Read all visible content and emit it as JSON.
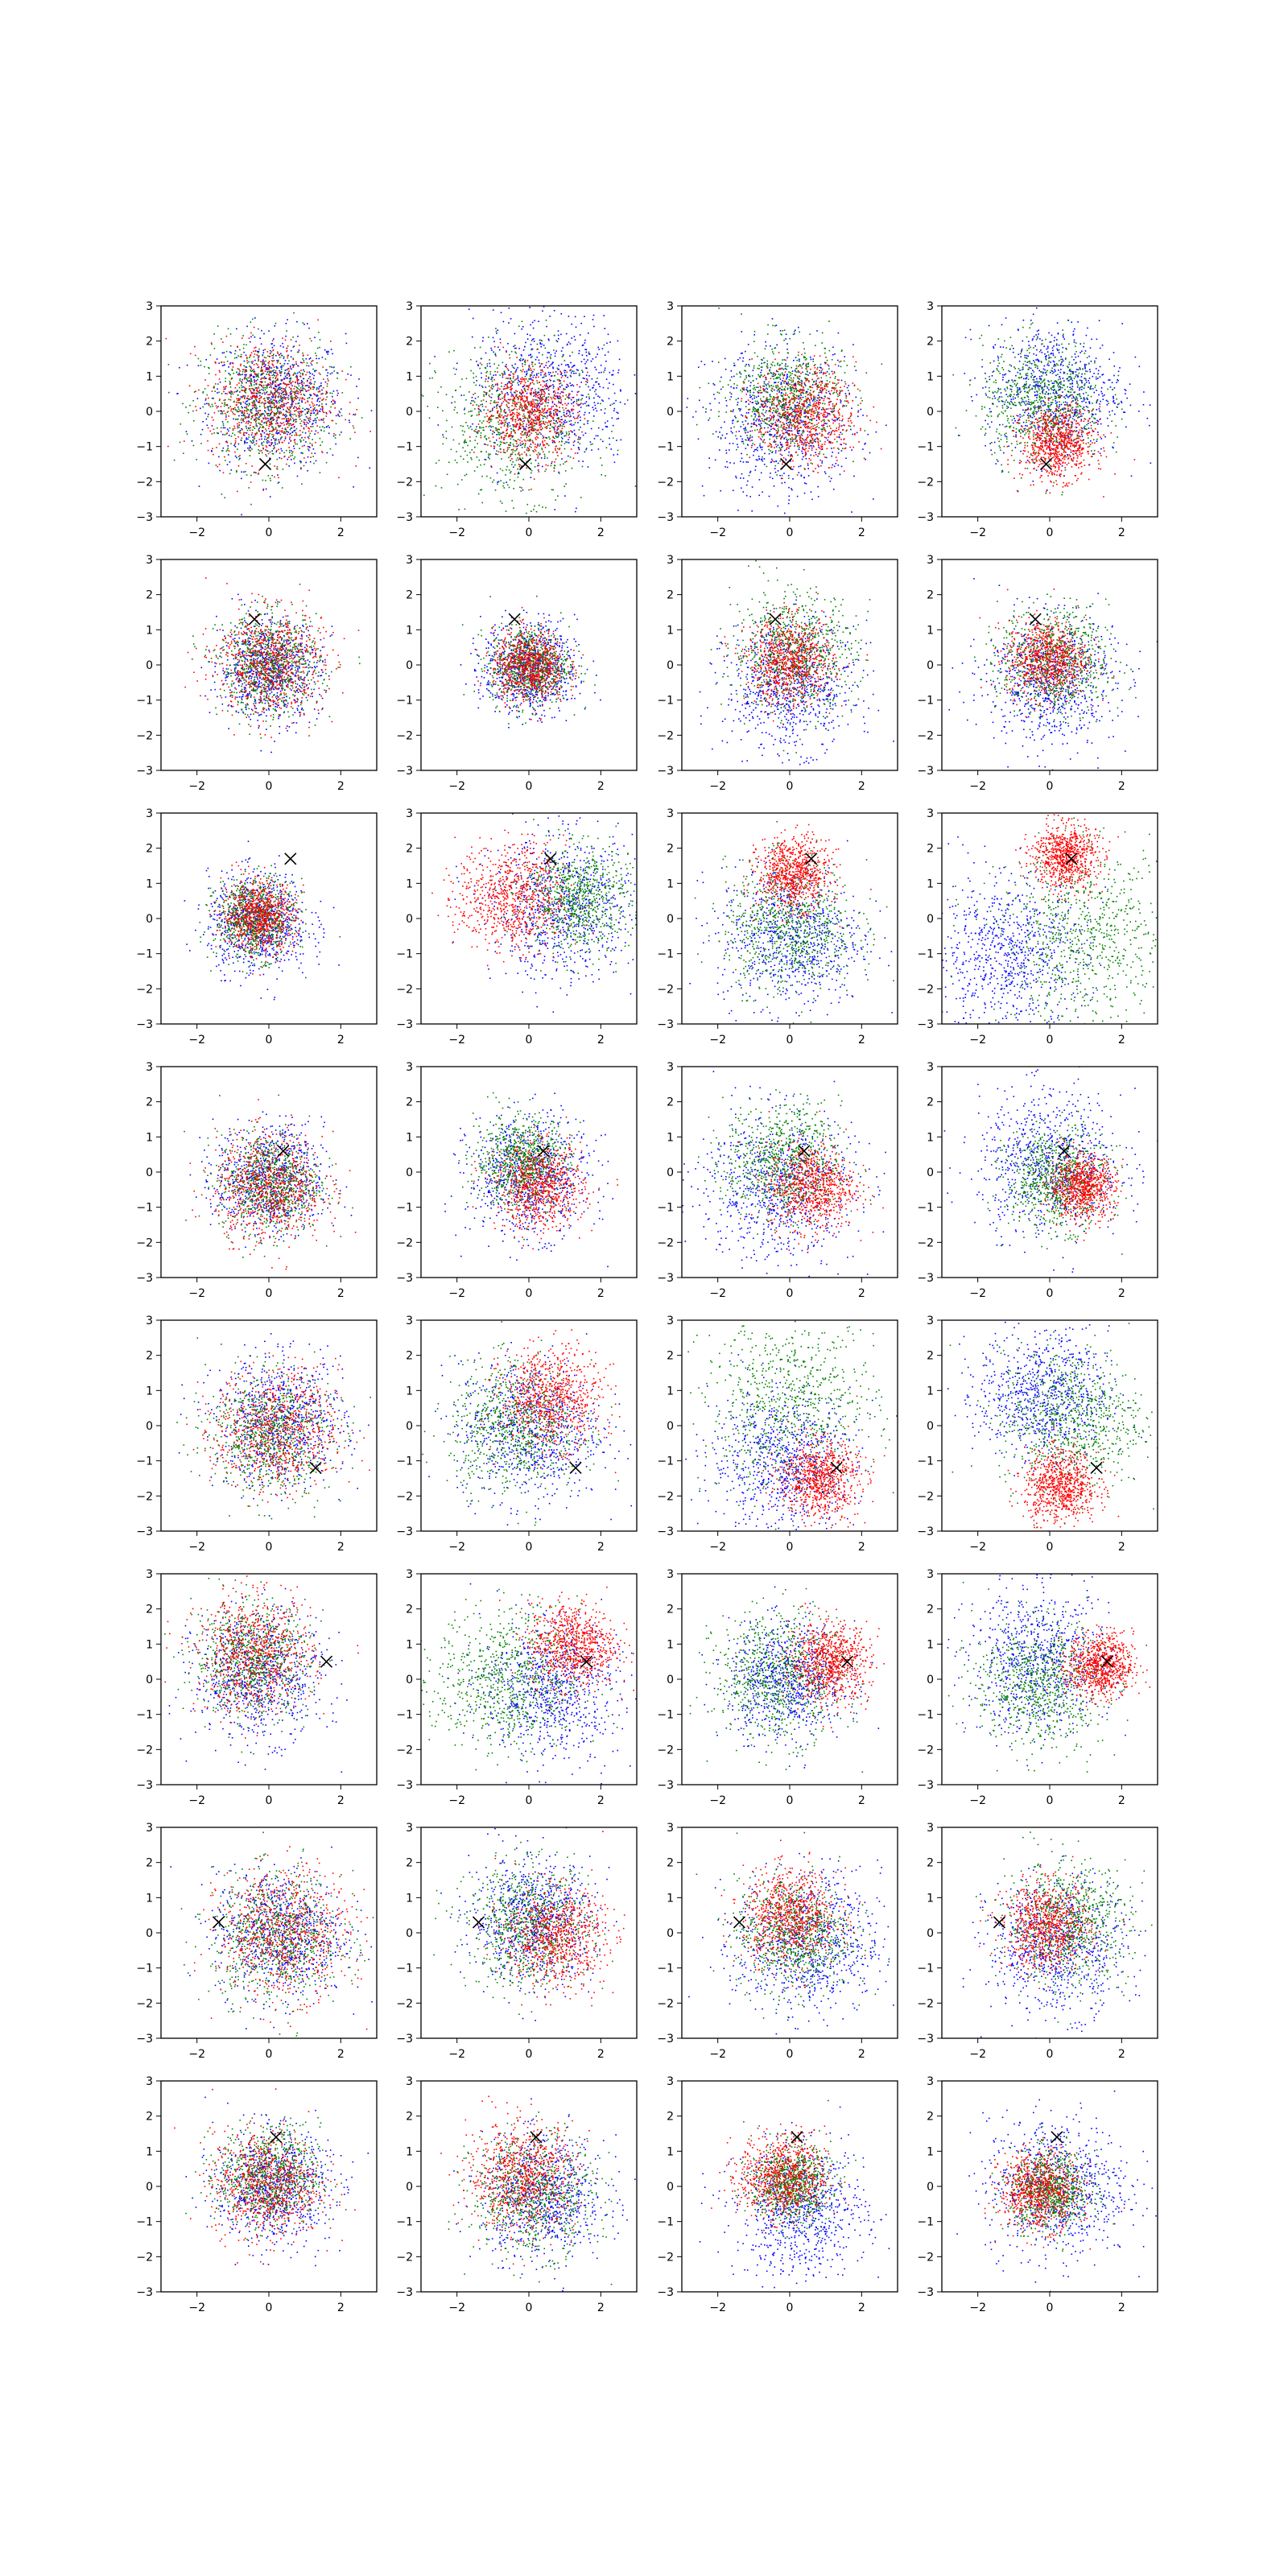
{
  "chart_data": {
    "type": "scatter",
    "layout": {
      "rows": 8,
      "cols": 4
    },
    "xlim": [
      -3,
      3
    ],
    "ylim": [
      -3,
      3
    ],
    "xticks": [
      -2,
      0,
      2
    ],
    "yticks": [
      -3,
      -2,
      -1,
      0,
      1,
      2,
      3
    ],
    "grid": false,
    "legend": "none",
    "colors": {
      "blue": "#0000ff",
      "green": "#008000",
      "red": "#ff0000",
      "marker": "#000000"
    },
    "marker_symbol": "x",
    "rows": [
      {
        "marker": [
          -0.1,
          -1.5
        ],
        "panels": [
          {
            "blue": {
              "center": [
                0.2,
                0.3
              ],
              "spread": 0.95
            },
            "green": {
              "center": [
                -0.1,
                0.2
              ],
              "spread": 0.9
            },
            "red": {
              "center": [
                0.0,
                0.3
              ],
              "spread": 0.85
            }
          },
          {
            "blue": {
              "center": [
                0.6,
                0.6
              ],
              "spread": 1.1
            },
            "green": {
              "center": [
                -0.4,
                -0.3
              ],
              "spread": 1.05
            },
            "red": {
              "center": [
                0.0,
                0.0
              ],
              "spread": 0.65
            }
          },
          {
            "blue": {
              "center": [
                -0.2,
                -0.3
              ],
              "spread": 1.05
            },
            "green": {
              "center": [
                -0.1,
                0.4
              ],
              "spread": 0.8
            },
            "red": {
              "center": [
                0.4,
                -0.1
              ],
              "spread": 0.7
            }
          },
          {
            "blue": {
              "center": [
                0.1,
                0.6
              ],
              "spread": 0.95
            },
            "green": {
              "center": [
                -0.2,
                0.3
              ],
              "spread": 0.85
            },
            "red": {
              "center": [
                0.2,
                -0.9
              ],
              "spread": 0.5
            }
          }
        ]
      },
      {
        "marker": [
          -0.4,
          1.3
        ],
        "panels": [
          {
            "blue": {
              "center": [
                0.0,
                -0.1
              ],
              "spread": 0.7
            },
            "green": {
              "center": [
                0.0,
                0.0
              ],
              "spread": 0.7
            },
            "red": {
              "center": [
                0.0,
                0.1
              ],
              "spread": 0.75
            }
          },
          {
            "blue": {
              "center": [
                0.0,
                -0.1
              ],
              "spread": 0.65
            },
            "green": {
              "center": [
                0.0,
                0.0
              ],
              "spread": 0.55
            },
            "red": {
              "center": [
                0.0,
                0.0
              ],
              "spread": 0.5
            }
          },
          {
            "blue": {
              "center": [
                0.0,
                -0.6
              ],
              "spread": 0.9
            },
            "green": {
              "center": [
                0.1,
                0.4
              ],
              "spread": 0.85
            },
            "red": {
              "center": [
                0.0,
                0.1
              ],
              "spread": 0.6
            }
          },
          {
            "blue": {
              "center": [
                0.0,
                -0.4
              ],
              "spread": 0.9
            },
            "green": {
              "center": [
                0.1,
                0.1
              ],
              "spread": 0.75
            },
            "red": {
              "center": [
                -0.1,
                0.2
              ],
              "spread": 0.55
            }
          }
        ]
      },
      {
        "marker": [
          0.6,
          1.7
        ],
        "panels": [
          {
            "blue": {
              "center": [
                -0.3,
                -0.1
              ],
              "spread": 0.7
            },
            "green": {
              "center": [
                -0.4,
                0.0
              ],
              "spread": 0.55
            },
            "red": {
              "center": [
                -0.3,
                0.1
              ],
              "spread": 0.5
            }
          },
          {
            "blue": {
              "center": [
                1.0,
                0.3
              ],
              "spread": 1.0
            },
            "green": {
              "center": [
                1.3,
                0.6
              ],
              "spread": 0.75
            },
            "red": {
              "center": [
                -0.5,
                0.6
              ],
              "spread": 0.75
            }
          },
          {
            "blue": {
              "center": [
                0.0,
                -0.5
              ],
              "spread": 1.0
            },
            "green": {
              "center": [
                0.0,
                -0.2
              ],
              "spread": 0.9
            },
            "red": {
              "center": [
                0.1,
                1.3
              ],
              "spread": 0.5
            }
          },
          {
            "blue": {
              "center": [
                -1.2,
                -1.0
              ],
              "spread": 1.1
            },
            "green": {
              "center": [
                1.0,
                -0.5
              ],
              "spread": 1.2
            },
            "red": {
              "center": [
                0.4,
                1.8
              ],
              "spread": 0.45
            }
          }
        ]
      },
      {
        "marker": [
          0.4,
          0.6
        ],
        "panels": [
          {
            "blue": {
              "center": [
                0.0,
                -0.2
              ],
              "spread": 0.75
            },
            "green": {
              "center": [
                0.0,
                -0.3
              ],
              "spread": 0.7
            },
            "red": {
              "center": [
                0.0,
                -0.4
              ],
              "spread": 0.75
            }
          },
          {
            "blue": {
              "center": [
                0.0,
                -0.1
              ],
              "spread": 0.85
            },
            "green": {
              "center": [
                -0.2,
                0.3
              ],
              "spread": 0.65
            },
            "red": {
              "center": [
                0.3,
                -0.4
              ],
              "spread": 0.6
            }
          },
          {
            "blue": {
              "center": [
                -0.4,
                -0.4
              ],
              "spread": 1.1
            },
            "green": {
              "center": [
                -0.2,
                0.3
              ],
              "spread": 0.8
            },
            "red": {
              "center": [
                0.6,
                -0.4
              ],
              "spread": 0.6
            }
          },
          {
            "blue": {
              "center": [
                0.0,
                0.3
              ],
              "spread": 1.0
            },
            "green": {
              "center": [
                0.2,
                -0.2
              ],
              "spread": 0.7
            },
            "red": {
              "center": [
                0.9,
                -0.4
              ],
              "spread": 0.45
            }
          }
        ]
      },
      {
        "marker": [
          1.3,
          -1.2
        ],
        "panels": [
          {
            "blue": {
              "center": [
                0.3,
                0.1
              ],
              "spread": 0.9
            },
            "green": {
              "center": [
                0.0,
                -0.2
              ],
              "spread": 0.85
            },
            "red": {
              "center": [
                0.2,
                -0.1
              ],
              "spread": 0.85
            }
          },
          {
            "blue": {
              "center": [
                0.0,
                -0.1
              ],
              "spread": 1.0
            },
            "green": {
              "center": [
                -0.4,
                0.0
              ],
              "spread": 0.9
            },
            "red": {
              "center": [
                0.6,
                0.8
              ],
              "spread": 0.7
            }
          },
          {
            "blue": {
              "center": [
                -0.2,
                -1.0
              ],
              "spread": 1.0
            },
            "green": {
              "center": [
                0.0,
                0.6
              ],
              "spread": 1.2
            },
            "red": {
              "center": [
                0.8,
                -1.5
              ],
              "spread": 0.55
            }
          },
          {
            "blue": {
              "center": [
                -0.2,
                0.9
              ],
              "spread": 0.9
            },
            "green": {
              "center": [
                0.6,
                0.2
              ],
              "spread": 1.0
            },
            "red": {
              "center": [
                0.3,
                -1.7
              ],
              "spread": 0.5
            }
          }
        ]
      },
      {
        "marker": [
          1.6,
          0.5
        ],
        "panels": [
          {
            "blue": {
              "center": [
                -0.3,
                0.1
              ],
              "spread": 0.9
            },
            "green": {
              "center": [
                -0.5,
                0.6
              ],
              "spread": 0.8
            },
            "red": {
              "center": [
                -0.4,
                0.7
              ],
              "spread": 0.8
            }
          },
          {
            "blue": {
              "center": [
                0.6,
                -0.3
              ],
              "spread": 0.95
            },
            "green": {
              "center": [
                -0.6,
                0.0
              ],
              "spread": 1.0
            },
            "red": {
              "center": [
                1.2,
                1.0
              ],
              "spread": 0.6
            }
          },
          {
            "blue": {
              "center": [
                -0.1,
                0.0
              ],
              "spread": 0.8
            },
            "green": {
              "center": [
                -0.3,
                0.1
              ],
              "spread": 0.9
            },
            "red": {
              "center": [
                1.1,
                0.5
              ],
              "spread": 0.55
            }
          },
          {
            "blue": {
              "center": [
                -0.3,
                0.5
              ],
              "spread": 1.0
            },
            "green": {
              "center": [
                -0.3,
                -0.1
              ],
              "spread": 0.9
            },
            "red": {
              "center": [
                1.4,
                0.4
              ],
              "spread": 0.45
            }
          }
        ]
      },
      {
        "marker": [
          -1.4,
          0.3
        ],
        "panels": [
          {
            "blue": {
              "center": [
                0.3,
                0.0
              ],
              "spread": 0.9
            },
            "green": {
              "center": [
                0.2,
                -0.1
              ],
              "spread": 0.9
            },
            "red": {
              "center": [
                0.4,
                0.0
              ],
              "spread": 0.9
            }
          },
          {
            "blue": {
              "center": [
                0.1,
                0.4
              ],
              "spread": 0.85
            },
            "green": {
              "center": [
                0.0,
                0.2
              ],
              "spread": 0.85
            },
            "red": {
              "center": [
                0.7,
                -0.1
              ],
              "spread": 0.7
            }
          },
          {
            "blue": {
              "center": [
                0.5,
                -0.3
              ],
              "spread": 1.0
            },
            "green": {
              "center": [
                0.1,
                0.0
              ],
              "spread": 0.8
            },
            "red": {
              "center": [
                0.0,
                0.5
              ],
              "spread": 0.65
            }
          },
          {
            "blue": {
              "center": [
                0.2,
                -0.4
              ],
              "spread": 0.95
            },
            "green": {
              "center": [
                0.5,
                0.3
              ],
              "spread": 0.85
            },
            "red": {
              "center": [
                -0.1,
                0.2
              ],
              "spread": 0.6
            }
          }
        ]
      },
      {
        "marker": [
          0.2,
          1.4
        ],
        "panels": [
          {
            "blue": {
              "center": [
                0.1,
                0.0
              ],
              "spread": 0.8
            },
            "green": {
              "center": [
                0.0,
                0.3
              ],
              "spread": 0.7
            },
            "red": {
              "center": [
                -0.1,
                0.1
              ],
              "spread": 0.75
            }
          },
          {
            "blue": {
              "center": [
                0.4,
                -0.3
              ],
              "spread": 0.85
            },
            "green": {
              "center": [
                0.1,
                -0.2
              ],
              "spread": 0.85
            },
            "red": {
              "center": [
                -0.2,
                0.3
              ],
              "spread": 0.75
            }
          },
          {
            "blue": {
              "center": [
                0.3,
                -0.7
              ],
              "spread": 0.9
            },
            "green": {
              "center": [
                0.0,
                0.1
              ],
              "spread": 0.55
            },
            "red": {
              "center": [
                -0.2,
                0.3
              ],
              "spread": 0.6
            }
          },
          {
            "blue": {
              "center": [
                0.2,
                0.0
              ],
              "spread": 1.0
            },
            "green": {
              "center": [
                0.0,
                -0.1
              ],
              "spread": 0.55
            },
            "red": {
              "center": [
                -0.3,
                -0.1
              ],
              "spread": 0.55
            }
          }
        ]
      }
    ]
  }
}
